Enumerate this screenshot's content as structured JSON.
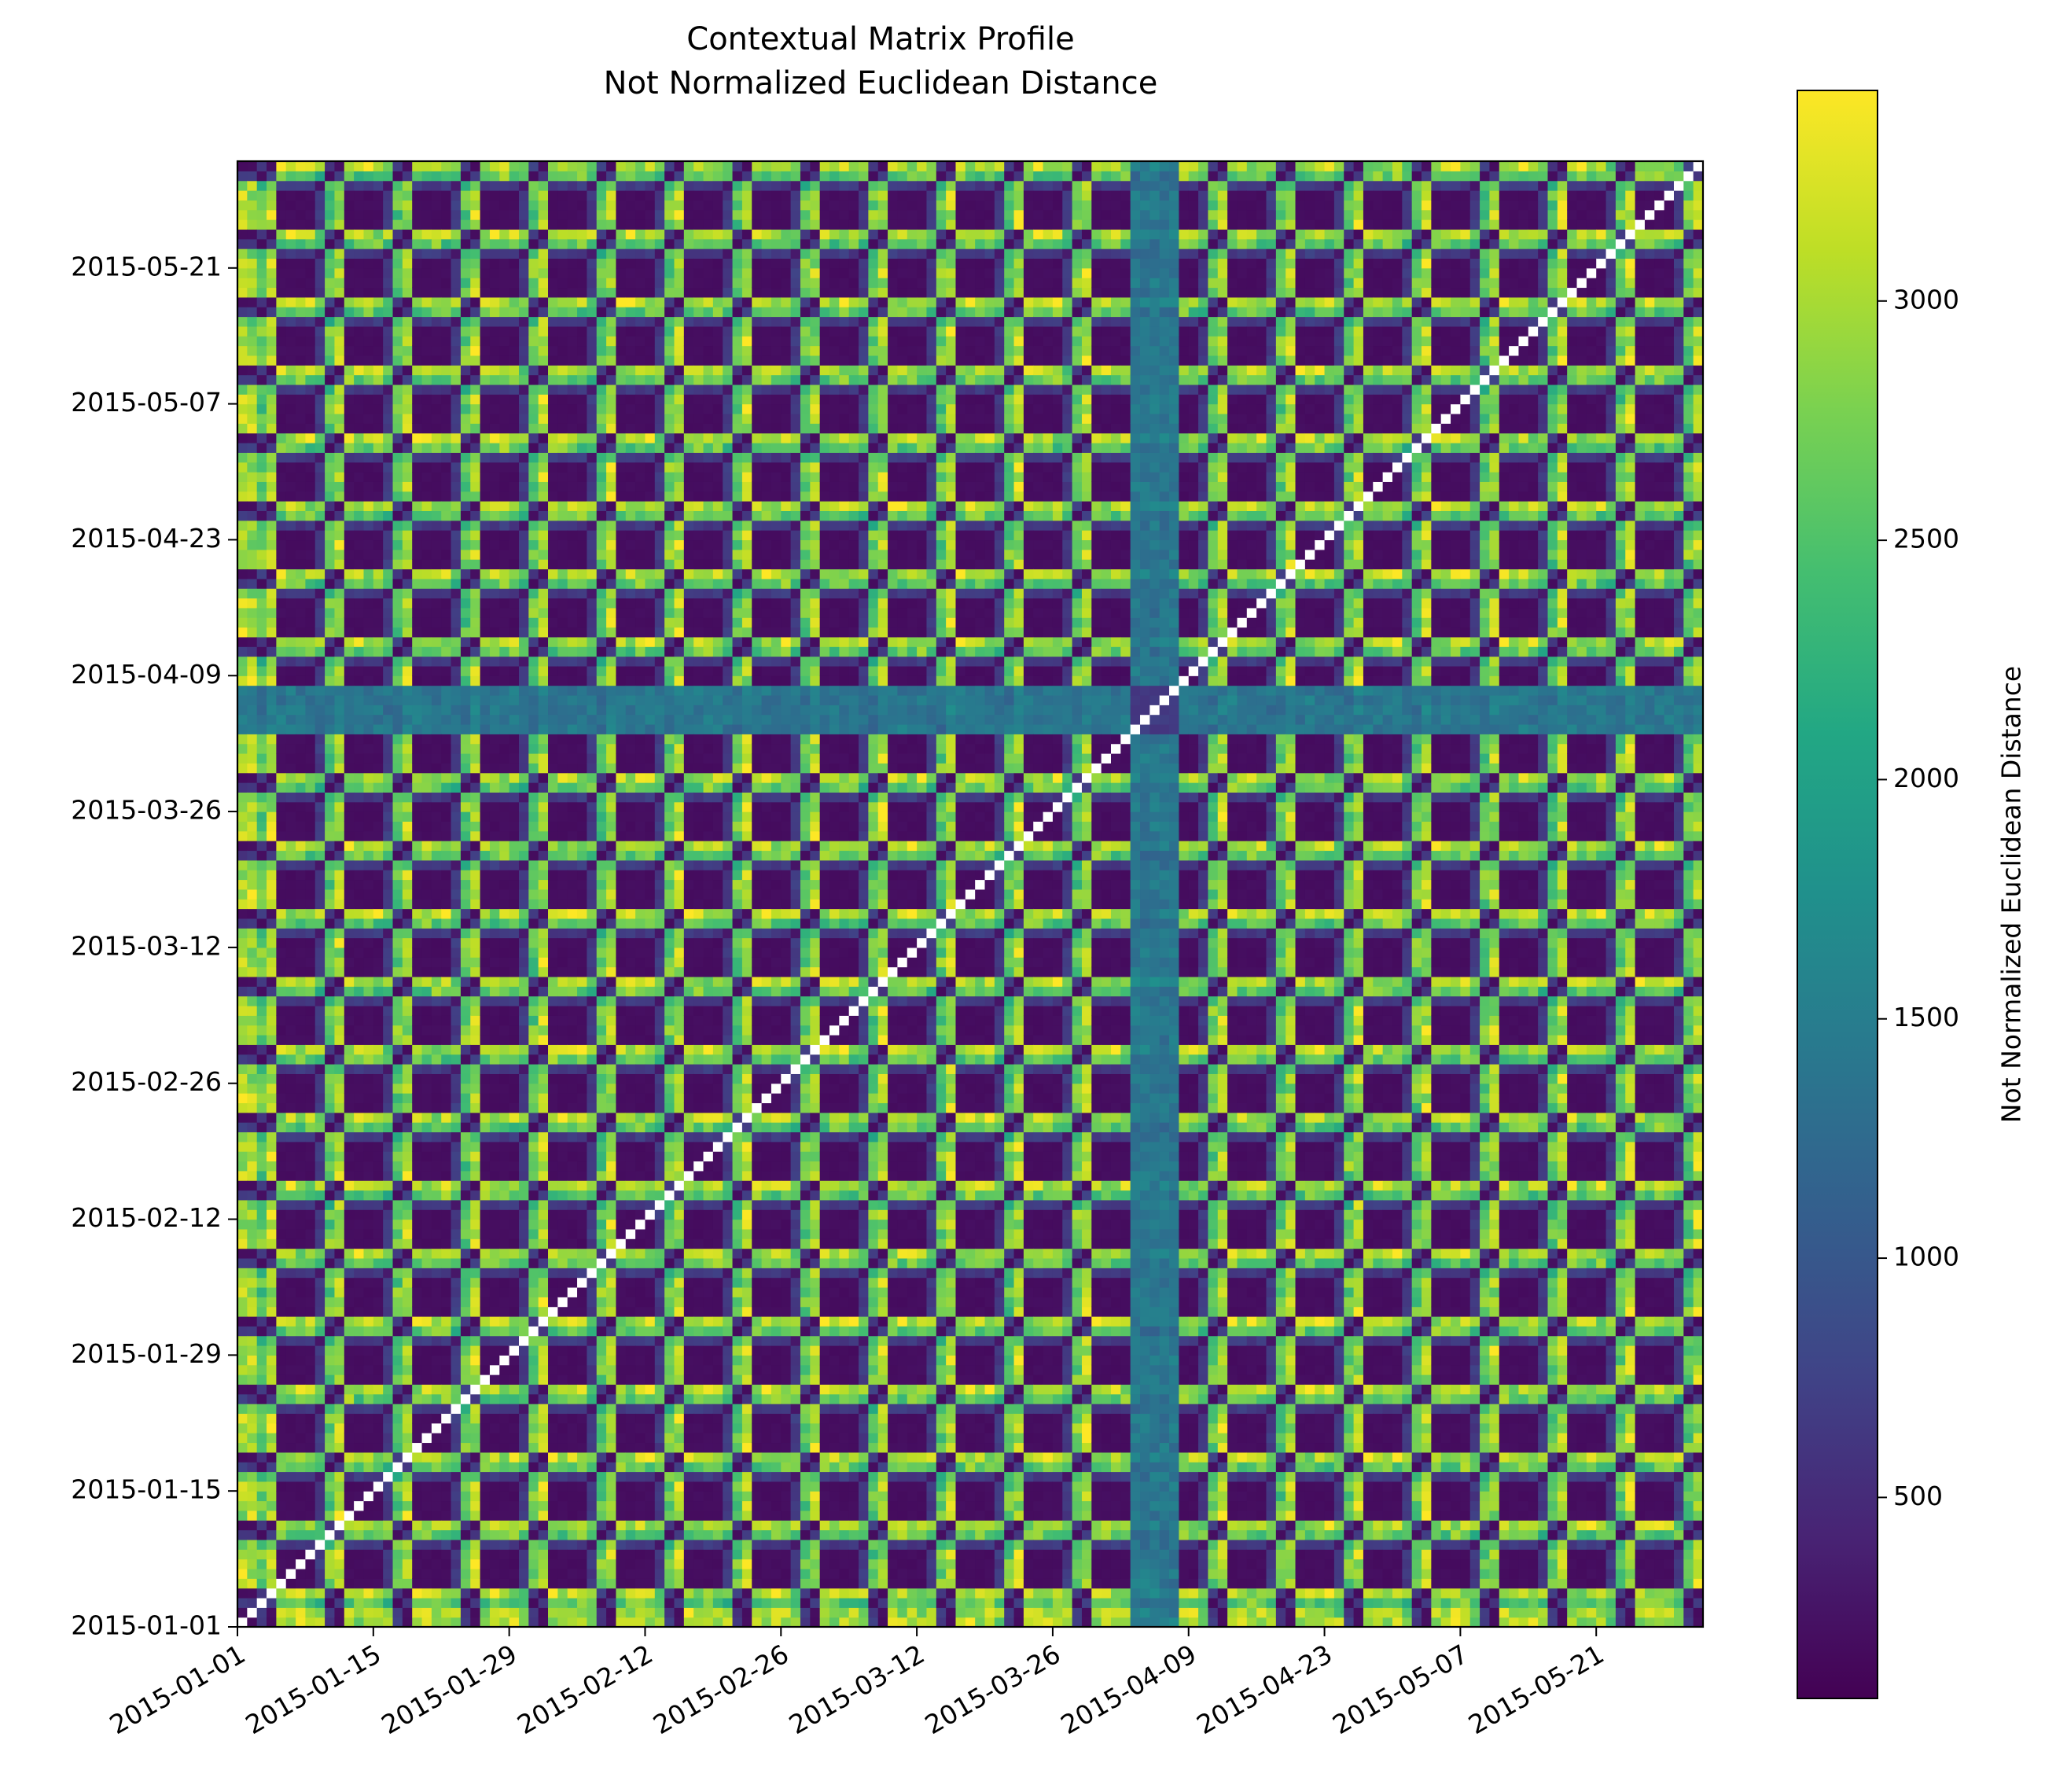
{
  "chart_data": {
    "type": "heatmap",
    "title": "Contextual Matrix Profile",
    "subtitle": "Not Normalized Euclidean Distance",
    "colorbar_label": "Not Normalized Euclidean Distance",
    "colormap": "viridis",
    "color_range": [
      80,
      3440
    ],
    "colorbar_ticks": [
      "500",
      "1000",
      "1500",
      "2000",
      "2500",
      "3000"
    ],
    "x_tick_labels": [
      "2015-01-01",
      "2015-01-15",
      "2015-01-29",
      "2015-02-12",
      "2015-02-26",
      "2015-03-12",
      "2015-03-26",
      "2015-04-09",
      "2015-04-23",
      "2015-05-07",
      "2015-05-21"
    ],
    "y_tick_labels": [
      "2015-01-01",
      "2015-01-15",
      "2015-01-29",
      "2015-02-12",
      "2015-02-26",
      "2015-03-12",
      "2015-03-26",
      "2015-04-09",
      "2015-04-23",
      "2015-05-07",
      "2015-05-21"
    ],
    "x_range": [
      "2015-01-01",
      "2015-05-31"
    ],
    "y_range": [
      "2015-01-01",
      "2015-05-31"
    ],
    "diagonal": "blank (self-match)",
    "pattern": "weekly periodic: weekend days produce high distances (~2500-3400) against weekdays, low (~150-600) between similar days",
    "anomaly_period": [
      "2015-04-03",
      "2015-04-07"
    ]
  }
}
